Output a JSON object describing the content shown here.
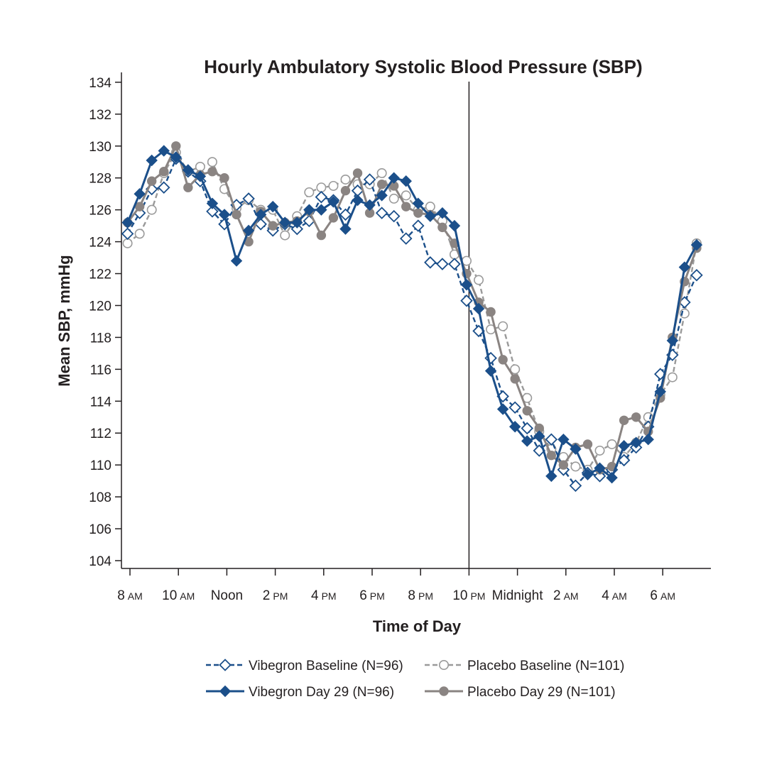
{
  "chart_data": {
    "type": "line",
    "title": "Hourly Ambulatory Systolic Blood Pressure (SBP)",
    "xlabel": "Time of Day",
    "ylabel": "Mean SBP, mmHg",
    "ylim": [
      104,
      134
    ],
    "y_ticks": [
      104,
      106,
      108,
      110,
      112,
      114,
      116,
      118,
      120,
      122,
      124,
      126,
      128,
      130,
      132,
      134
    ],
    "xlim": [
      7.5,
      31.9
    ],
    "x_unit": "hour of day (24+ = next day)",
    "x_ticks": [
      {
        "x": 8,
        "label": "8",
        "suffix": "AM"
      },
      {
        "x": 10,
        "label": "10",
        "suffix": "AM"
      },
      {
        "x": 12,
        "label": "Noon",
        "suffix": ""
      },
      {
        "x": 14,
        "label": "2",
        "suffix": "PM"
      },
      {
        "x": 16,
        "label": "4",
        "suffix": "PM"
      },
      {
        "x": 18,
        "label": "6",
        "suffix": "PM"
      },
      {
        "x": 20,
        "label": "8",
        "suffix": "PM"
      },
      {
        "x": 22,
        "label": "10",
        "suffix": "PM"
      },
      {
        "x": 24,
        "label": "Midnight",
        "suffix": ""
      },
      {
        "x": 26,
        "label": "2",
        "suffix": "AM"
      },
      {
        "x": 28,
        "label": "4",
        "suffix": "AM"
      },
      {
        "x": 30,
        "label": "6",
        "suffix": "AM"
      }
    ],
    "vline_x": 22,
    "grid": false,
    "legend_position": "bottom",
    "x": [
      7.9,
      8.4,
      8.9,
      9.4,
      9.9,
      10.4,
      10.9,
      11.4,
      11.9,
      12.4,
      12.9,
      13.4,
      13.9,
      14.4,
      14.9,
      15.4,
      15.9,
      16.4,
      16.9,
      17.4,
      17.9,
      18.4,
      18.9,
      19.4,
      19.9,
      20.4,
      20.9,
      21.4,
      21.9,
      22.4,
      22.9,
      23.4,
      23.9,
      24.4,
      24.9,
      25.4,
      25.9,
      26.4,
      26.9,
      27.4,
      27.9,
      28.4,
      28.9,
      29.4,
      29.9,
      30.4,
      30.9,
      31.4
    ],
    "series": [
      {
        "name": "Vibegron Baseline (N=96)",
        "color": "#1b4f8a",
        "dashed": true,
        "marker": "diamond-open",
        "values": [
          124.5,
          125.8,
          127.3,
          127.4,
          129.2,
          128.4,
          127.8,
          125.9,
          125.1,
          126.3,
          126.7,
          125.1,
          124.7,
          125.1,
          124.8,
          125.3,
          126.8,
          126.6,
          125.7,
          127.2,
          127.9,
          125.8,
          125.6,
          124.2,
          125.0,
          122.7,
          122.6,
          122.6,
          120.3,
          118.4,
          116.7,
          114.3,
          113.6,
          112.3,
          110.9,
          111.6,
          109.7,
          108.7,
          109.5,
          109.3,
          109.7,
          110.3,
          111.1,
          112.4,
          115.7,
          116.9,
          120.2,
          121.9
        ]
      },
      {
        "name": "Placebo Baseline (N=101)",
        "color": "#9a9a9a",
        "dashed": true,
        "marker": "circle-open",
        "values": [
          123.9,
          124.5,
          126.0,
          128.3,
          129.6,
          128.4,
          128.7,
          129.0,
          127.3,
          126.1,
          126.6,
          126.0,
          126.0,
          124.4,
          125.6,
          127.1,
          127.4,
          127.5,
          127.9,
          127.6,
          127.6,
          128.3,
          126.7,
          126.9,
          126.0,
          126.2,
          125.3,
          123.2,
          122.8,
          121.6,
          118.5,
          118.7,
          116.0,
          114.2,
          112.1,
          111.0,
          110.5,
          109.9,
          109.7,
          110.9,
          111.3,
          110.5,
          111.4,
          113.0,
          114.4,
          115.5,
          119.5,
          123.9
        ]
      },
      {
        "name": "Vibegron Day 29 (N=96)",
        "color": "#1b4f8a",
        "dashed": false,
        "marker": "diamond-filled",
        "values": [
          125.2,
          127.0,
          129.1,
          129.7,
          129.3,
          128.5,
          128.1,
          126.4,
          125.7,
          122.8,
          124.7,
          125.7,
          126.2,
          125.2,
          125.2,
          126.0,
          126.0,
          126.5,
          124.8,
          126.6,
          126.3,
          126.9,
          128.0,
          127.8,
          126.4,
          125.6,
          125.8,
          125.0,
          121.3,
          119.8,
          115.9,
          113.5,
          112.4,
          111.5,
          111.8,
          109.3,
          111.6,
          111.0,
          109.4,
          109.8,
          109.2,
          111.2,
          111.4,
          111.6,
          114.6,
          117.8,
          122.4,
          123.8
        ]
      },
      {
        "name": "Placebo Day 29 (N=101)",
        "color": "#8a8482",
        "dashed": false,
        "marker": "circle-filled",
        "values": [
          125.2,
          126.2,
          127.8,
          128.4,
          130.0,
          127.4,
          128.2,
          128.4,
          128.0,
          125.7,
          124.0,
          125.9,
          125.0,
          125.2,
          125.3,
          125.9,
          124.4,
          125.5,
          127.2,
          128.3,
          125.8,
          127.6,
          127.5,
          126.2,
          125.8,
          125.7,
          124.9,
          123.9,
          122.0,
          120.2,
          119.6,
          116.6,
          115.4,
          113.4,
          112.3,
          110.6,
          110.0,
          111.1,
          111.3,
          109.7,
          109.9,
          112.8,
          113.0,
          112.1,
          114.2,
          118.0,
          121.5,
          123.6
        ]
      }
    ]
  }
}
